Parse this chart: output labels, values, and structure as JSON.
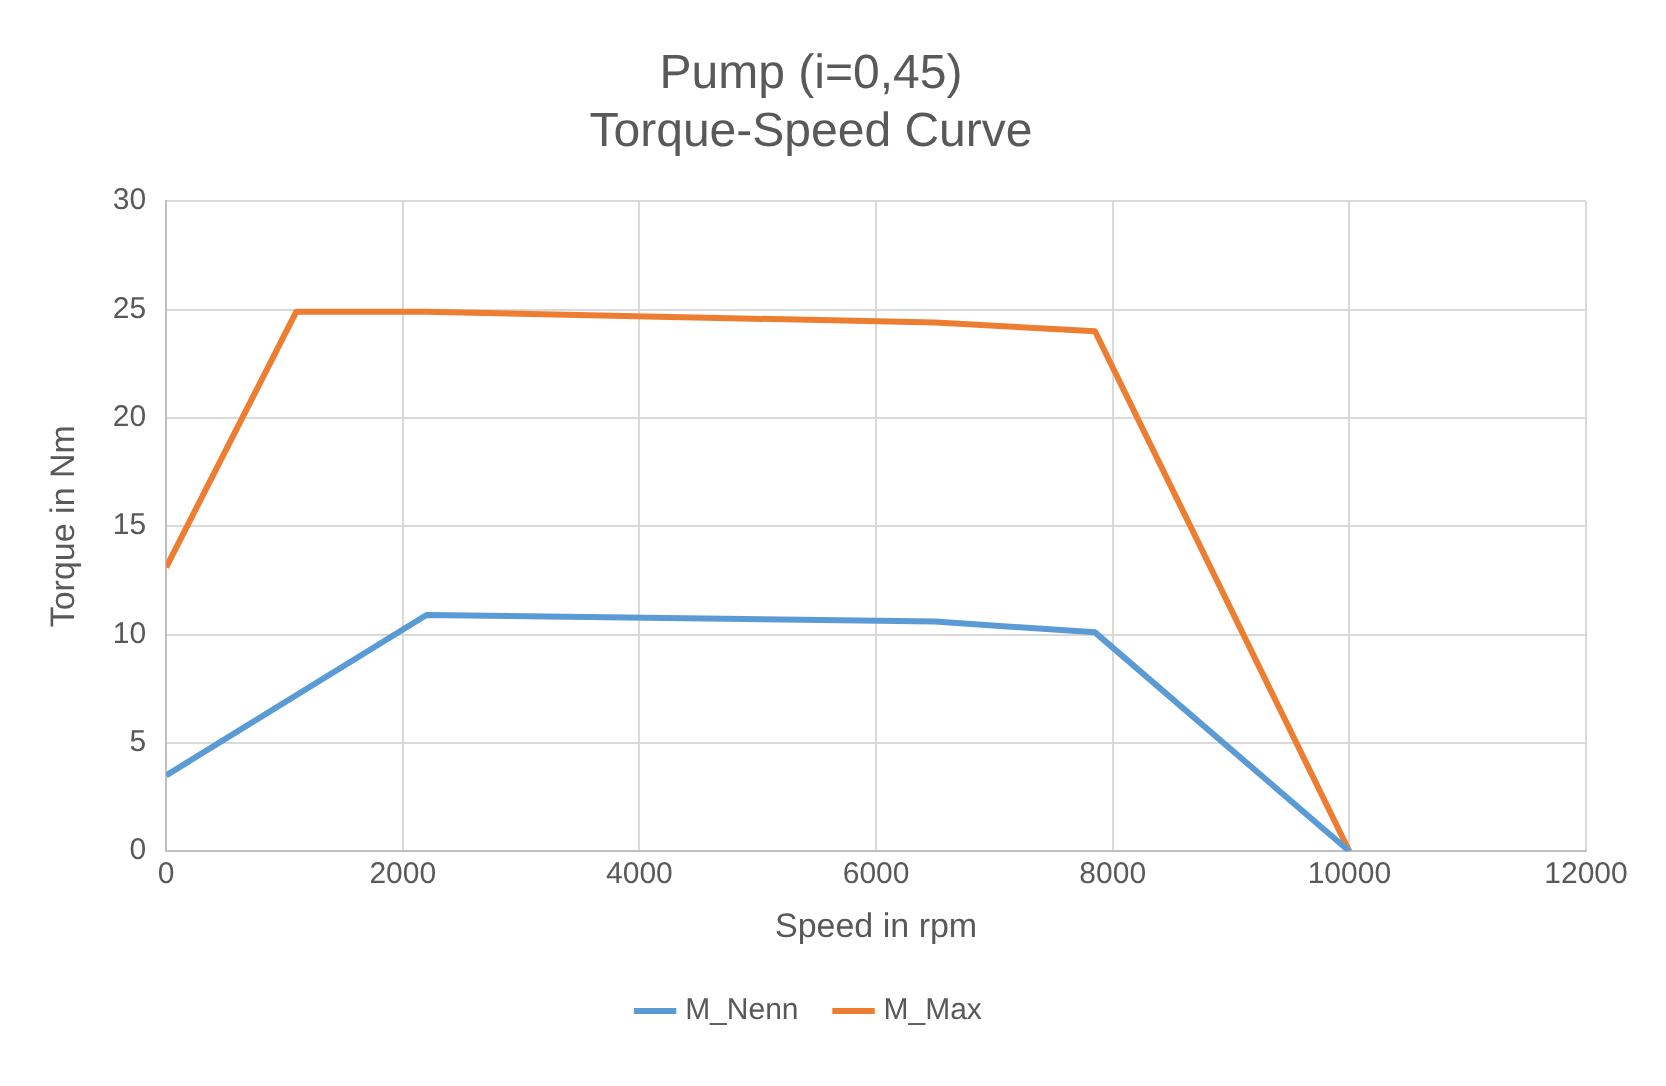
{
  "chart_data": {
    "type": "line",
    "title": "Pump (i=0,45)",
    "subtitle": "Torque-Speed Curve",
    "xlabel": "Speed in rpm",
    "ylabel": "Torque in Nm",
    "series": [
      {
        "name": "M_Nenn",
        "color": "#5b9bd5",
        "x": [
          0,
          2200,
          6500,
          7850,
          10000
        ],
        "values": [
          3.5,
          10.9,
          10.6,
          10.1,
          0
        ]
      },
      {
        "name": "M_Max",
        "color": "#ed7d31",
        "x": [
          0,
          1100,
          2200,
          6500,
          7850,
          10000
        ],
        "values": [
          13.1,
          24.9,
          24.9,
          24.4,
          24.0,
          0
        ]
      }
    ],
    "xlim": [
      0,
      12000
    ],
    "xticks": [
      0,
      2000,
      4000,
      6000,
      8000,
      10000,
      12000
    ],
    "ylim": [
      0,
      30
    ],
    "yticks": [
      0,
      5,
      10,
      15,
      20,
      25,
      30
    ],
    "grid": true,
    "legend": "bottom",
    "marker": "none",
    "line_style": "solid"
  }
}
